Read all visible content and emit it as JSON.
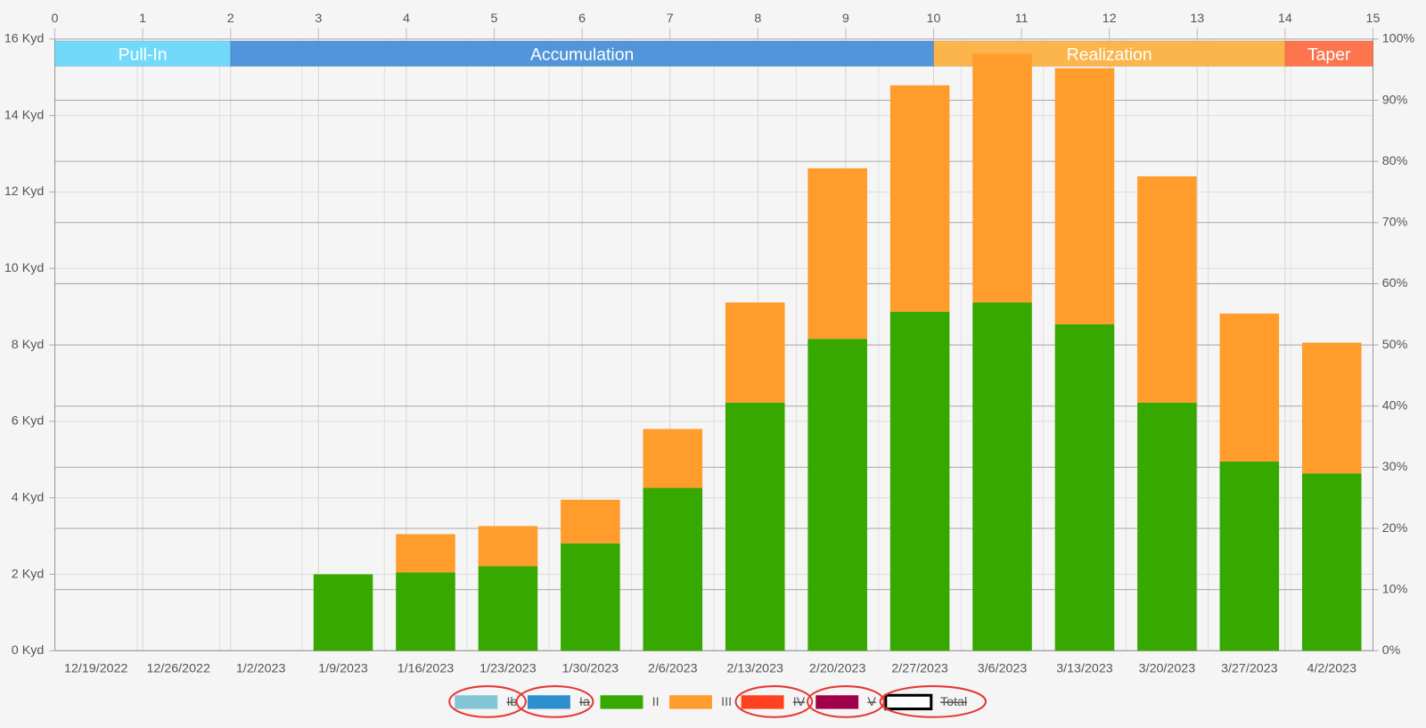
{
  "chart_data": {
    "type": "bar",
    "stacked": true,
    "categories": [
      "12/19/2022",
      "12/26/2022",
      "1/2/2023",
      "1/9/2023",
      "1/16/2023",
      "1/23/2023",
      "1/30/2023",
      "2/6/2023",
      "2/13/2023",
      "2/20/2023",
      "2/27/2023",
      "3/6/2023",
      "3/13/2023",
      "3/20/2023",
      "3/27/2023",
      "4/2/2023"
    ],
    "series": [
      {
        "name": "Ib",
        "color": "#82c5d6",
        "hidden": true
      },
      {
        "name": "Ia",
        "color": "#2e8fcf",
        "hidden": true
      },
      {
        "name": "II",
        "color": "#36a800",
        "hidden": false,
        "values": [
          0,
          0,
          0,
          2.0,
          2.05,
          2.21,
          2.81,
          4.26,
          6.49,
          8.16,
          8.87,
          9.11,
          8.54,
          6.49,
          4.95,
          4.64
        ]
      },
      {
        "name": "III",
        "color": "#ff9c2b",
        "hidden": false,
        "values": [
          0,
          0,
          0,
          0,
          1.0,
          1.05,
          1.14,
          1.54,
          2.62,
          4.46,
          5.92,
          6.51,
          6.7,
          5.92,
          3.87,
          3.42
        ]
      },
      {
        "name": "IV",
        "color": "#ff4121",
        "hidden": true
      },
      {
        "name": "V",
        "color": "#a0004a",
        "hidden": true
      },
      {
        "name": "Total",
        "color": "#ffffff",
        "border": "#000000",
        "hidden": true
      }
    ],
    "ylim": [
      0,
      16
    ],
    "yticks": [
      {
        "value": 0,
        "label": "0 Kyd"
      },
      {
        "value": 2,
        "label": "2 Kyd"
      },
      {
        "value": 4,
        "label": "4 Kyd"
      },
      {
        "value": 6,
        "label": "6 Kyd"
      },
      {
        "value": 8,
        "label": "8 Kyd"
      },
      {
        "value": 10,
        "label": "10 Kyd"
      },
      {
        "value": 12,
        "label": "12 Kyd"
      },
      {
        "value": 14,
        "label": "14 Kyd"
      },
      {
        "value": 16,
        "label": "16 Kyd"
      }
    ],
    "y2lim": [
      0,
      100
    ],
    "y2ticks": [
      {
        "value": 0,
        "label": "0%"
      },
      {
        "value": 10,
        "label": "10%"
      },
      {
        "value": 20,
        "label": "20%"
      },
      {
        "value": 30,
        "label": "30%"
      },
      {
        "value": 40,
        "label": "40%"
      },
      {
        "value": 50,
        "label": "50%"
      },
      {
        "value": 60,
        "label": "60%"
      },
      {
        "value": 70,
        "label": "70%"
      },
      {
        "value": 80,
        "label": "80%"
      },
      {
        "value": 90,
        "label": "90%"
      },
      {
        "value": 100,
        "label": "100%"
      }
    ],
    "xlim": [
      0,
      15
    ],
    "xticks": [
      0,
      1,
      2,
      3,
      4,
      5,
      6,
      7,
      8,
      9,
      10,
      11,
      12,
      13,
      14,
      15
    ],
    "phases": [
      {
        "name": "Pull-In",
        "start": 0,
        "end": 2,
        "color": "#6cd8fb"
      },
      {
        "name": "Accumulation",
        "start": 2,
        "end": 10,
        "color": "#4a90d9"
      },
      {
        "name": "Realization",
        "start": 10,
        "end": 14,
        "color": "#fdb245"
      },
      {
        "name": "Taper",
        "start": 14,
        "end": 15,
        "color": "#fd6f45"
      }
    ],
    "grid": true
  }
}
